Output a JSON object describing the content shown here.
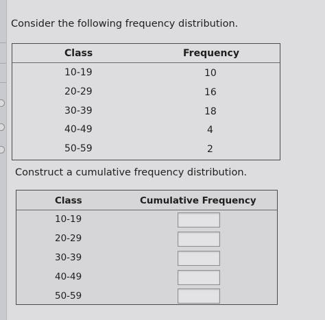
{
  "question": {
    "prompt": "Consider the following frequency distribution."
  },
  "frequency_table": {
    "headers": [
      "Class",
      "Frequency"
    ],
    "rows": [
      {
        "class": "10-19",
        "frequency": "10"
      },
      {
        "class": "20-29",
        "frequency": "16"
      },
      {
        "class": "30-39",
        "frequency": "18"
      },
      {
        "class": "40-49",
        "frequency": "4"
      },
      {
        "class": "50-59",
        "frequency": "2"
      }
    ]
  },
  "task": {
    "prompt": "Construct a cumulative frequency distribution."
  },
  "cumulative_table": {
    "headers": [
      "Class",
      "Cumulative Frequency"
    ],
    "rows": [
      {
        "class": "10-19",
        "answer": ""
      },
      {
        "class": "20-29",
        "answer": ""
      },
      {
        "class": "30-39",
        "answer": ""
      },
      {
        "class": "40-49",
        "answer": ""
      },
      {
        "class": "50-59",
        "answer": ""
      }
    ]
  }
}
